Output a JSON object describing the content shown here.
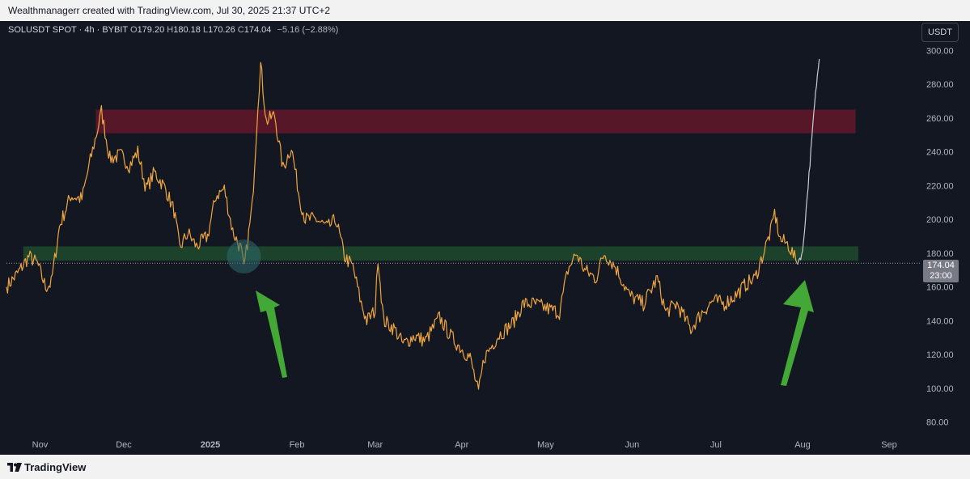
{
  "header": {
    "credit": "Wealthmanagerr created with TradingView.com, Jul 30, 2025 21:37 UTC+2"
  },
  "legend": {
    "symbol": "SOLUSDT SPOT · 4h · BYBIT",
    "o_label": "O",
    "o": "179.20",
    "h_label": "H",
    "h": "180.18",
    "l_label": "L",
    "l": "170.26",
    "c_label": "C",
    "c": "174.04",
    "change": "−5.16 (−2.88%)"
  },
  "currency_button": "USDT",
  "price_label": {
    "price": "174.04",
    "countdown": "23:00"
  },
  "footer": {
    "brand": "TradingView"
  },
  "colors": {
    "background": "#131722",
    "candles": "#f0a640",
    "projection": "#c9cbd1",
    "resistance_zone": "#6e1a2b",
    "support_zone": "#1f4a2e",
    "arrow": "#43a835"
  },
  "chart_data": {
    "type": "line",
    "x_tick_labels": [
      "Nov",
      "Dec",
      "2025",
      "Feb",
      "Mar",
      "Apr",
      "May",
      "Jun",
      "Jul",
      "Aug",
      "Sep"
    ],
    "y_tick_labels": [
      "80.00",
      "100.00",
      "120.00",
      "140.00",
      "160.00",
      "180.00",
      "200.00",
      "220.00",
      "240.00",
      "260.00",
      "280.00",
      "300.00"
    ],
    "ylim": [
      75,
      305
    ],
    "x_range": [
      "2024-10-20",
      "2025-09-12"
    ],
    "series": [
      {
        "points": [
          [
            "2024-10-20",
            160
          ],
          [
            "2024-10-24",
            168
          ],
          [
            "2024-10-28",
            178
          ],
          [
            "2024-10-31",
            174
          ],
          [
            "2024-11-03",
            160
          ],
          [
            "2024-11-05",
            162
          ],
          [
            "2024-11-08",
            196
          ],
          [
            "2024-11-12",
            214
          ],
          [
            "2024-11-16",
            212
          ],
          [
            "2024-11-19",
            235
          ],
          [
            "2024-11-22",
            256
          ],
          [
            "2024-11-23",
            264
          ],
          [
            "2024-11-26",
            236
          ],
          [
            "2024-11-30",
            238
          ],
          [
            "2024-12-03",
            232
          ],
          [
            "2024-12-06",
            240
          ],
          [
            "2024-12-09",
            218
          ],
          [
            "2024-12-12",
            228
          ],
          [
            "2024-12-16",
            218
          ],
          [
            "2024-12-19",
            205
          ],
          [
            "2024-12-21",
            183
          ],
          [
            "2024-12-24",
            192
          ],
          [
            "2024-12-27",
            184
          ],
          [
            "2024-12-31",
            190
          ],
          [
            "2025-01-03",
            214
          ],
          [
            "2025-01-06",
            218
          ],
          [
            "2025-01-09",
            193
          ],
          [
            "2025-01-12",
            182
          ],
          [
            "2025-01-13",
            170
          ],
          [
            "2025-01-16",
            208
          ],
          [
            "2025-01-18",
            268
          ],
          [
            "2025-01-19",
            292
          ],
          [
            "2025-01-21",
            258
          ],
          [
            "2025-01-24",
            262
          ],
          [
            "2025-01-27",
            230
          ],
          [
            "2025-01-30",
            243
          ],
          [
            "2025-02-02",
            212
          ],
          [
            "2025-02-04",
            200
          ],
          [
            "2025-02-08",
            200
          ],
          [
            "2025-02-12",
            195
          ],
          [
            "2025-02-15",
            200
          ],
          [
            "2025-02-18",
            178
          ],
          [
            "2025-02-21",
            172
          ],
          [
            "2025-02-24",
            150
          ],
          [
            "2025-02-26",
            140
          ],
          [
            "2025-03-01",
            146
          ],
          [
            "2025-03-02",
            178
          ],
          [
            "2025-03-04",
            140
          ],
          [
            "2025-03-08",
            135
          ],
          [
            "2025-03-11",
            126
          ],
          [
            "2025-03-15",
            131
          ],
          [
            "2025-03-19",
            128
          ],
          [
            "2025-03-24",
            142
          ],
          [
            "2025-03-28",
            131
          ],
          [
            "2025-03-31",
            125
          ],
          [
            "2025-04-04",
            118
          ],
          [
            "2025-04-07",
            97
          ],
          [
            "2025-04-09",
            118
          ],
          [
            "2025-04-14",
            131
          ],
          [
            "2025-04-19",
            138
          ],
          [
            "2025-04-23",
            150
          ],
          [
            "2025-04-27",
            150
          ],
          [
            "2025-05-02",
            147
          ],
          [
            "2025-05-06",
            145
          ],
          [
            "2025-05-09",
            170
          ],
          [
            "2025-05-12",
            180
          ],
          [
            "2025-05-15",
            170
          ],
          [
            "2025-05-19",
            165
          ],
          [
            "2025-05-22",
            180
          ],
          [
            "2025-05-26",
            172
          ],
          [
            "2025-05-31",
            155
          ],
          [
            "2025-06-05",
            150
          ],
          [
            "2025-06-10",
            165
          ],
          [
            "2025-06-13",
            145
          ],
          [
            "2025-06-17",
            150
          ],
          [
            "2025-06-22",
            135
          ],
          [
            "2025-06-26",
            145
          ],
          [
            "2025-06-30",
            152
          ],
          [
            "2025-07-04",
            150
          ],
          [
            "2025-07-08",
            155
          ],
          [
            "2025-07-12",
            162
          ],
          [
            "2025-07-15",
            165
          ],
          [
            "2025-07-18",
            180
          ],
          [
            "2025-07-21",
            195
          ],
          [
            "2025-07-22",
            204
          ],
          [
            "2025-07-24",
            188
          ],
          [
            "2025-07-27",
            185
          ],
          [
            "2025-07-30",
            174
          ]
        ]
      },
      {
        "points": [
          [
            "2025-07-30",
            174
          ],
          [
            "2025-08-01",
            180
          ],
          [
            "2025-08-02",
            200
          ],
          [
            "2025-08-03",
            220
          ],
          [
            "2025-08-04",
            240
          ],
          [
            "2025-08-05",
            262
          ],
          [
            "2025-08-06",
            280
          ],
          [
            "2025-08-07",
            295
          ]
        ]
      }
    ],
    "zones": [
      {
        "from": "2024-11-21",
        "to": "2025-08-20",
        "low": 251,
        "high": 265
      },
      {
        "from": "2024-10-26",
        "to": "2025-08-21",
        "low": 175.5,
        "high": 184
      }
    ],
    "last_price": 174.04
  }
}
